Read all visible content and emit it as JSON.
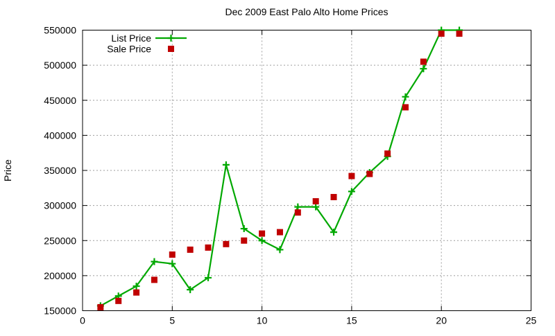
{
  "chart_data": {
    "type": "line",
    "title": "Dec 2009 East Palo Alto Home Prices",
    "xlabel": "",
    "ylabel": "Price",
    "xlim": [
      0,
      25
    ],
    "ylim": [
      150000,
      550000
    ],
    "xticks": [
      0,
      5,
      10,
      15,
      20,
      25
    ],
    "xtick_labels": [
      "0",
      "5",
      "10",
      "15",
      "20",
      "25"
    ],
    "yticks": [
      150000,
      200000,
      250000,
      300000,
      350000,
      400000,
      450000,
      500000,
      550000
    ],
    "ytick_labels": [
      "150000",
      "200000",
      "250000",
      "300000",
      "350000",
      "400000",
      "450000",
      "500000",
      "550000"
    ],
    "grid": true,
    "legend_position": "top-left",
    "x": [
      1,
      2,
      3,
      4,
      5,
      6,
      7,
      8,
      9,
      10,
      11,
      12,
      13,
      14,
      15,
      16,
      17,
      18,
      19,
      20,
      21
    ],
    "series": [
      {
        "name": "List Price",
        "style": "line-with-plus-markers",
        "color": "#00a800",
        "values": [
          157000,
          171000,
          185000,
          220000,
          217000,
          180000,
          197000,
          358000,
          267000,
          250000,
          237000,
          298000,
          298000,
          262000,
          320000,
          347000,
          370000,
          455000,
          495000,
          550000,
          550000
        ]
      },
      {
        "name": "Sale Price",
        "style": "square-markers",
        "color": "#c00000",
        "values": [
          155000,
          164000,
          176000,
          194000,
          230000,
          237000,
          240000,
          245000,
          250000,
          260000,
          262000,
          290000,
          306000,
          312000,
          342000,
          345000,
          374000,
          440000,
          505000,
          545000,
          545000
        ]
      }
    ],
    "colors": {
      "grid": "#9e9e9e",
      "axis": "#000000",
      "background": "#ffffff"
    }
  }
}
